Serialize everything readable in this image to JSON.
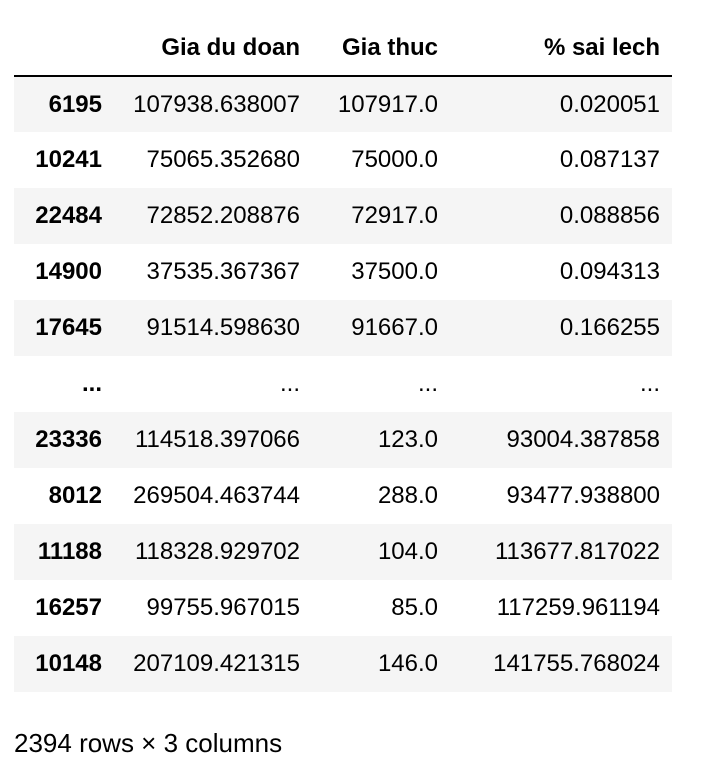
{
  "table": {
    "columns": [
      "",
      "Gia du doan",
      "Gia thuc",
      "% sai lech"
    ],
    "rows": [
      {
        "index": "6195",
        "gia_du_doan": "107938.638007",
        "gia_thuc": "107917.0",
        "sai_lech": "0.020051"
      },
      {
        "index": "10241",
        "gia_du_doan": "75065.352680",
        "gia_thuc": "75000.0",
        "sai_lech": "0.087137"
      },
      {
        "index": "22484",
        "gia_du_doan": "72852.208876",
        "gia_thuc": "72917.0",
        "sai_lech": "0.088856"
      },
      {
        "index": "14900",
        "gia_du_doan": "37535.367367",
        "gia_thuc": "37500.0",
        "sai_lech": "0.094313"
      },
      {
        "index": "17645",
        "gia_du_doan": "91514.598630",
        "gia_thuc": "91667.0",
        "sai_lech": "0.166255"
      },
      {
        "index": "...",
        "gia_du_doan": "...",
        "gia_thuc": "...",
        "sai_lech": "..."
      },
      {
        "index": "23336",
        "gia_du_doan": "114518.397066",
        "gia_thuc": "123.0",
        "sai_lech": "93004.387858"
      },
      {
        "index": "8012",
        "gia_du_doan": "269504.463744",
        "gia_thuc": "288.0",
        "sai_lech": "93477.938800"
      },
      {
        "index": "11188",
        "gia_du_doan": "118328.929702",
        "gia_thuc": "104.0",
        "sai_lech": "113677.817022"
      },
      {
        "index": "16257",
        "gia_du_doan": "99755.967015",
        "gia_thuc": "85.0",
        "sai_lech": "117259.961194"
      },
      {
        "index": "10148",
        "gia_du_doan": "207109.421315",
        "gia_thuc": "146.0",
        "sai_lech": "141755.768024"
      }
    ]
  },
  "shape_text": "2394 rows × 3 columns"
}
